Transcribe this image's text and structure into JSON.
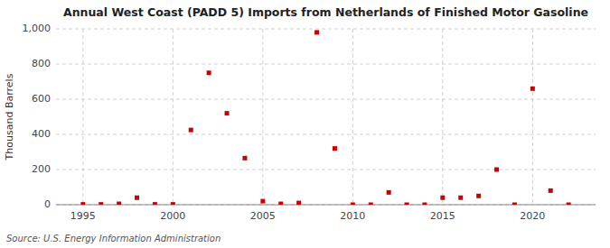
{
  "chart_data": {
    "type": "scatter",
    "title": "Annual West Coast (PADD 5) Imports from Netherlands of Finished Motor Gasoline",
    "ylabel": "Thousand Barrels",
    "annotations": [
      "Source: U.S. Energy Information Administration"
    ],
    "x": [
      1995,
      1996,
      1997,
      1998,
      1999,
      2000,
      2001,
      2002,
      2003,
      2004,
      2005,
      2006,
      2007,
      2008,
      2009,
      2010,
      2011,
      2012,
      2013,
      2014,
      2015,
      2016,
      2017,
      2018,
      2019,
      2020,
      2021,
      2022
    ],
    "values": [
      2,
      2,
      5,
      40,
      2,
      2,
      425,
      750,
      520,
      265,
      20,
      5,
      10,
      980,
      320,
      0,
      0,
      70,
      0,
      0,
      40,
      40,
      50,
      200,
      0,
      660,
      80,
      0
    ],
    "color": "#cc0000",
    "marker": "square",
    "xlim": [
      1993.5,
      2023.5
    ],
    "ylim": [
      0,
      1000
    ],
    "xticks": [
      1995,
      2000,
      2005,
      2010,
      2015,
      2020
    ],
    "yticks": [
      0,
      200,
      400,
      600,
      800,
      {
        "value": 1000,
        "label": "1,000"
      }
    ],
    "grid": true
  }
}
